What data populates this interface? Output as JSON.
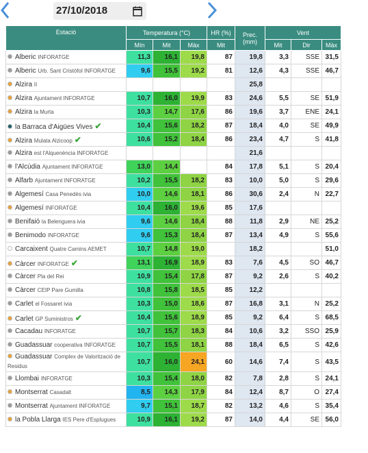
{
  "toolbar": {
    "date": "27/10/2018"
  },
  "table": {
    "group_headers": [
      "Estació",
      "Temperatura (°C)",
      "HR (%)",
      "Prec. (mm)",
      "Vent"
    ],
    "sub_headers": [
      "Mín",
      "Mit",
      "Màx",
      "Mit",
      "Mit",
      "Dir",
      "Màx"
    ],
    "rows": [
      {
        "name": "Alberic",
        "tag": "INFORATGE",
        "dot": "#9a9a9a",
        "check": false,
        "cells": [
          "11,3",
          "16,1",
          "19,8",
          "87",
          "19,8",
          "3,3",
          "SSE",
          "31,5"
        ]
      },
      {
        "name": "Alberic",
        "tag": "Urb. Sant Cristòfol INFORATGE",
        "dot": "#9a9a9a",
        "check": false,
        "cells": [
          "9,6",
          "15,5",
          "19,2",
          "81",
          "12,6",
          "4,3",
          "SSE",
          "46,7"
        ]
      },
      {
        "name": "Alzira",
        "tag": "II",
        "dot": "#e8a33a",
        "check": false,
        "cells": [
          null,
          null,
          null,
          null,
          "25,8",
          null,
          null,
          null
        ]
      },
      {
        "name": "Alzira",
        "tag": "Ajuntament INFORATGE",
        "dot": "#e8a33a",
        "check": false,
        "cells": [
          "10,7",
          "16,0",
          "19,9",
          "83",
          "24,6",
          "5,5",
          "SE",
          "51,9"
        ]
      },
      {
        "name": "Alzira",
        "tag": "la Murta",
        "dot": "#e8a33a",
        "check": false,
        "cells": [
          "10,3",
          "14,7",
          "17,6",
          "86",
          "19,6",
          "3,7",
          "ENE",
          "24,1"
        ]
      },
      {
        "name": "la Barraca d'Aigües Vives",
        "tag": "",
        "dot": "#1f5e6b",
        "check": true,
        "cells": [
          "10,4",
          "15,6",
          "18,2",
          "87",
          "18,4",
          "4,0",
          "SE",
          "49,9"
        ]
      },
      {
        "name": "Alzira",
        "tag": "Mulata Alzicoop",
        "dot": "#e8a33a",
        "check": true,
        "cells": [
          "10,6",
          "15,2",
          "18,4",
          "86",
          "23,4",
          "4,7",
          "S",
          "41,8"
        ]
      },
      {
        "name": "Alzira",
        "tag": "est l'Alquenència INFORATGE",
        "dot": "#9a9a9a",
        "check": false,
        "cells": [
          null,
          null,
          null,
          null,
          "21,6",
          null,
          null,
          null
        ]
      },
      {
        "name": "l'Alcúdia",
        "tag": "Ajuntament INFORATGE",
        "dot": "#9a9a9a",
        "check": false,
        "cells": [
          "13,0",
          "14,4",
          null,
          "84",
          "17,8",
          "5,1",
          "S",
          "20,4"
        ]
      },
      {
        "name": "Alfarb",
        "tag": "Ajuntament INFORATGE",
        "dot": "#9a9a9a",
        "check": false,
        "cells": [
          "10,2",
          "15,5",
          "18,2",
          "83",
          "10,0",
          "5,0",
          "S",
          "29,6"
        ]
      },
      {
        "name": "Algemesí",
        "tag": "Casa Penedès ivia",
        "dot": "#9a9a9a",
        "check": false,
        "cells": [
          "10,0",
          "14,6",
          "18,1",
          "86",
          "30,6",
          "2,4",
          "N",
          "22,7"
        ]
      },
      {
        "name": "Algemesí",
        "tag": "INFORATGE",
        "dot": "#e8a33a",
        "check": false,
        "cells": [
          "10,4",
          "16,0",
          "19,6",
          "85",
          "17,6",
          null,
          null,
          null
        ]
      },
      {
        "name": "Benifaió",
        "tag": "la Belenguera ivia",
        "dot": "#9a9a9a",
        "check": false,
        "cells": [
          "9,6",
          "14,6",
          "18,4",
          "88",
          "11,8",
          "2,9",
          "NE",
          "25,2"
        ]
      },
      {
        "name": "Benimodo",
        "tag": "INFORATGE",
        "dot": "#9a9a9a",
        "check": false,
        "cells": [
          "9,6",
          "15,3",
          "18,4",
          "87",
          "13,4",
          "4,9",
          "S",
          "55,6"
        ]
      },
      {
        "name": "Carcaixent",
        "tag": "Quatre Camins AEMET",
        "dot": "#ffffff",
        "check": false,
        "cells": [
          "10,7",
          "14,8",
          "19,0",
          null,
          "18,2",
          null,
          null,
          "51,0"
        ]
      },
      {
        "name": "Càrcer",
        "tag": "INFORATGE",
        "dot": "#e8a33a",
        "check": true,
        "cells": [
          "13,1",
          "16,9",
          "18,9",
          "83",
          "7,6",
          "4,5",
          "SO",
          "46,7"
        ]
      },
      {
        "name": "Càrcer",
        "tag": "Pla del Rei",
        "dot": "#9a9a9a",
        "check": false,
        "cells": [
          "10,9",
          "15,4",
          "17,8",
          "87",
          "9,2",
          "2,6",
          "S",
          "40,2"
        ]
      },
      {
        "name": "Càrcer",
        "tag": "CEIP Pare Gumilla",
        "dot": "#9a9a9a",
        "check": false,
        "cells": [
          "10,8",
          "15,8",
          "18,5",
          "85",
          "12,2",
          null,
          null,
          null
        ]
      },
      {
        "name": "Carlet",
        "tag": "el Fossaret ivia",
        "dot": "#9a9a9a",
        "check": false,
        "cells": [
          "10,3",
          "15,0",
          "18,6",
          "87",
          "16,8",
          "3,1",
          "N",
          "25,2"
        ]
      },
      {
        "name": "Carlet",
        "tag": "GP Suministros",
        "dot": "#e8a33a",
        "check": true,
        "cells": [
          "10,4",
          "15,6",
          "18,9",
          "85",
          "9,2",
          "6,4",
          "S",
          "68,5"
        ]
      },
      {
        "name": "Cacadau",
        "tag": "INFORATGE",
        "dot": "#9a9a9a",
        "check": false,
        "cells": [
          "10,7",
          "15,7",
          "18,3",
          "84",
          "10,6",
          "3,2",
          "SSO",
          "25,9"
        ]
      },
      {
        "name": "Guadassuar",
        "tag": "cooperativa INFORATGE",
        "dot": "#9a9a9a",
        "check": false,
        "cells": [
          "10,7",
          "15,5",
          "18,1",
          "88",
          "18,4",
          "6,5",
          "S",
          "42,6"
        ]
      },
      {
        "name": "Guadassuar",
        "tag": "Complex de Valorització de Residus",
        "dot": "#e8a33a",
        "check": false,
        "cells": [
          "10,7",
          "16,0",
          "24,1",
          "60",
          "14,6",
          "7,4",
          "S",
          "43,5"
        ]
      },
      {
        "name": "Llombai",
        "tag": "INFORATGE",
        "dot": "#9a9a9a",
        "check": false,
        "cells": [
          "10,3",
          "15,4",
          "18,0",
          "82",
          "7,8",
          "2,8",
          "S",
          "24,1"
        ]
      },
      {
        "name": "Montserrat",
        "tag": "Casadalt",
        "dot": "#e8a33a",
        "check": false,
        "cells": [
          "8,5",
          "14,3",
          "17,9",
          "84",
          "12,4",
          "8,7",
          "O",
          "27,4"
        ]
      },
      {
        "name": "Montserrat",
        "tag": "Ajuntament INFORATGE",
        "dot": "#9a9a9a",
        "check": false,
        "cells": [
          "9,7",
          "15,1",
          "18,7",
          "82",
          "13,2",
          "4,6",
          "S",
          "35,4"
        ]
      },
      {
        "name": "la Pobla Llarga",
        "tag": "IES Pere d'Esplugues",
        "dot": "#e8a33a",
        "check": false,
        "cells": [
          "10,9",
          "16,1",
          "19,2",
          "87",
          "14,0",
          "4,4",
          "SE",
          "56,0"
        ]
      }
    ]
  }
}
